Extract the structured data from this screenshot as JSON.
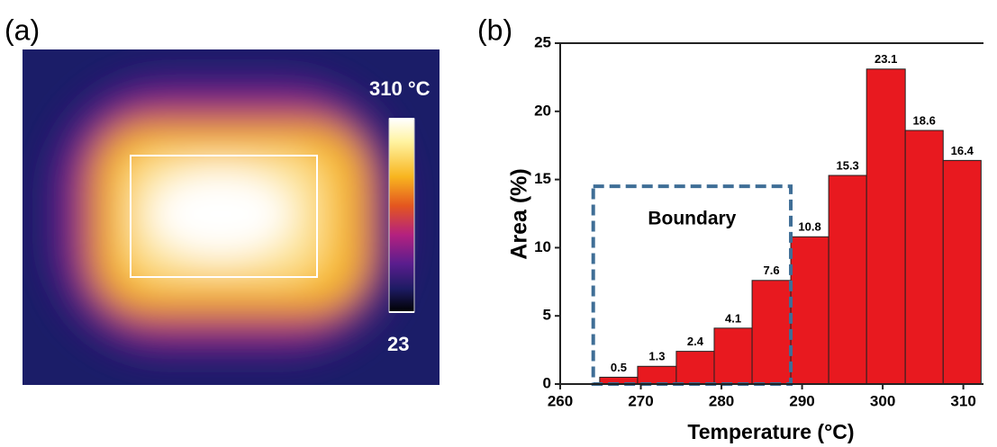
{
  "chart_data": [
    {
      "type": "thermal-image",
      "label": "(a)",
      "colorbar": {
        "min": 23,
        "max": {
          "value": 310,
          "label": "310 °C"
        }
      }
    },
    {
      "type": "histogram",
      "label": "(b)",
      "xlabel": "Temperature (°C)",
      "ylabel": "Area (%)",
      "bins": [
        264.9,
        269.6,
        274.4,
        279.1,
        283.8,
        288.6,
        293.3,
        298.0,
        302.8,
        307.5,
        312.2
      ],
      "values": [
        0.5,
        1.3,
        2.4,
        4.1,
        7.6,
        10.8,
        15.3,
        23.1,
        18.6,
        16.4
      ],
      "color": "#e8191f",
      "xlim": [
        260,
        312.5
      ],
      "xticks": [
        260,
        270,
        280,
        290,
        300,
        310
      ],
      "ylim": [
        0,
        25
      ],
      "yticks": [
        0,
        5,
        10,
        15,
        20,
        25
      ],
      "boundary": {
        "label": "Boundary",
        "x": [
          264.1,
          288.6
        ],
        "y": [
          0,
          14.5
        ],
        "color": "#3f6e96"
      }
    }
  ]
}
